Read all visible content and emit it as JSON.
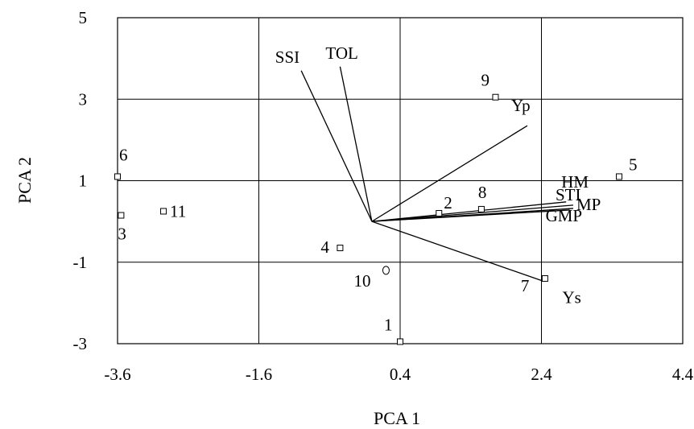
{
  "chart_data": {
    "type": "scatter",
    "title": "",
    "xlabel": "PCA 1",
    "ylabel": "PCA 2",
    "xlim": [
      -3.6,
      4.4
    ],
    "ylim": [
      -3,
      5
    ],
    "xticks": [
      "-3.6",
      "-1.6",
      "0.4",
      "2.4",
      "4.4"
    ],
    "yticks": [
      "-3",
      "-1",
      "1",
      "3",
      "5"
    ],
    "grid": true,
    "points": [
      {
        "label": "1",
        "x": 0.4,
        "y": -2.95
      },
      {
        "label": "2",
        "x": 0.95,
        "y": 0.2
      },
      {
        "label": "3",
        "x": -3.55,
        "y": 0.15
      },
      {
        "label": "4",
        "x": -0.45,
        "y": -0.65
      },
      {
        "label": "5",
        "x": 3.5,
        "y": 1.1
      },
      {
        "label": "6",
        "x": -3.6,
        "y": 1.1
      },
      {
        "label": "7",
        "x": 2.45,
        "y": -1.4
      },
      {
        "label": "8",
        "x": 1.55,
        "y": 0.3
      },
      {
        "label": "9",
        "x": 1.75,
        "y": 3.05
      },
      {
        "label": "10",
        "x": 0.2,
        "y": -1.2
      },
      {
        "label": "11",
        "x": -2.95,
        "y": 0.25
      }
    ],
    "vectors": [
      {
        "label": "SSI",
        "x": -1.0,
        "y": 3.7
      },
      {
        "label": "TOL",
        "x": -0.45,
        "y": 3.8
      },
      {
        "label": "Yp",
        "x": 2.2,
        "y": 2.35
      },
      {
        "label": "HM",
        "x": 2.75,
        "y": 0.48
      },
      {
        "label": "STI",
        "x": 2.85,
        "y": 0.4
      },
      {
        "label": "MP",
        "x": 2.85,
        "y": 0.32
      },
      {
        "label": "GMP",
        "x": 2.8,
        "y": 0.28
      },
      {
        "label": "Ys",
        "x": 2.4,
        "y": -1.45
      }
    ]
  }
}
